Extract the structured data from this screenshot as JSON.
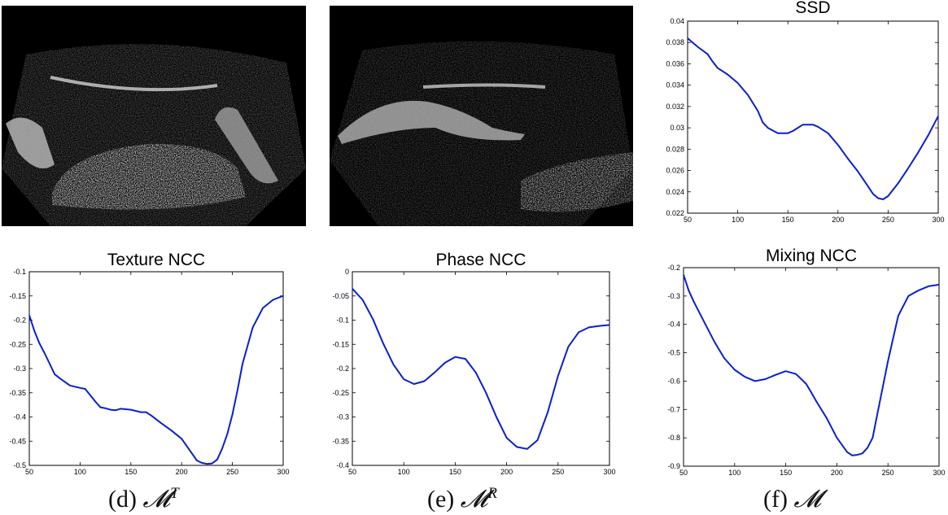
{
  "images": [
    {
      "name": "ultrasound-image-1"
    },
    {
      "name": "ultrasound-image-2"
    }
  ],
  "chart_data": [
    {
      "id": "ssd",
      "type": "line",
      "title": "SSD",
      "xlim": [
        50,
        300
      ],
      "ylim": [
        0.022,
        0.04
      ],
      "xticks": [
        50,
        100,
        150,
        200,
        250,
        300
      ],
      "yticks": [
        0.022,
        0.024,
        0.026,
        0.028,
        0.03,
        0.032,
        0.034,
        0.036,
        0.038,
        0.04
      ],
      "color": "#0a1fcf",
      "x": [
        50,
        60,
        70,
        75,
        80,
        90,
        100,
        110,
        120,
        125,
        130,
        140,
        150,
        155,
        160,
        165,
        170,
        175,
        180,
        190,
        200,
        210,
        220,
        230,
        235,
        240,
        245,
        250,
        260,
        270,
        280,
        290,
        300
      ],
      "y": [
        0.0384,
        0.0376,
        0.0369,
        0.0362,
        0.0356,
        0.035,
        0.0342,
        0.0331,
        0.0316,
        0.0305,
        0.03,
        0.0295,
        0.0295,
        0.0297,
        0.03,
        0.0303,
        0.0303,
        0.0303,
        0.0301,
        0.0295,
        0.0284,
        0.0271,
        0.0259,
        0.0245,
        0.0238,
        0.0234,
        0.0233,
        0.0236,
        0.0248,
        0.0262,
        0.0277,
        0.0293,
        0.0311
      ]
    },
    {
      "id": "texture-ncc",
      "type": "line",
      "title": "Texture NCC",
      "xlim": [
        50,
        300
      ],
      "ylim": [
        -0.5,
        -0.1
      ],
      "xticks": [
        50,
        100,
        150,
        200,
        250,
        300
      ],
      "yticks": [
        -0.5,
        -0.45,
        -0.4,
        -0.35,
        -0.3,
        -0.25,
        -0.2,
        -0.15,
        -0.1
      ],
      "color": "#0a1fcf",
      "x": [
        50,
        55,
        60,
        65,
        70,
        75,
        80,
        90,
        100,
        105,
        110,
        115,
        120,
        125,
        130,
        135,
        140,
        150,
        160,
        165,
        170,
        180,
        190,
        200,
        205,
        210,
        215,
        220,
        225,
        230,
        235,
        240,
        245,
        250,
        255,
        260,
        270,
        280,
        290,
        300
      ],
      "y": [
        -0.19,
        -0.222,
        -0.248,
        -0.268,
        -0.29,
        -0.312,
        -0.32,
        -0.335,
        -0.34,
        -0.342,
        -0.355,
        -0.368,
        -0.38,
        -0.382,
        -0.385,
        -0.386,
        -0.383,
        -0.385,
        -0.39,
        -0.39,
        -0.397,
        -0.413,
        -0.428,
        -0.445,
        -0.46,
        -0.475,
        -0.49,
        -0.495,
        -0.497,
        -0.496,
        -0.488,
        -0.465,
        -0.435,
        -0.395,
        -0.345,
        -0.29,
        -0.215,
        -0.175,
        -0.158,
        -0.15
      ]
    },
    {
      "id": "phase-ncc",
      "type": "line",
      "title": "Phase NCC",
      "xlim": [
        50,
        300
      ],
      "ylim": [
        -0.4,
        0
      ],
      "xticks": [
        50,
        100,
        150,
        200,
        250,
        300
      ],
      "yticks": [
        -0.4,
        -0.35,
        -0.3,
        -0.25,
        -0.2,
        -0.15,
        -0.1,
        -0.05,
        0
      ],
      "color": "#0a1fcf",
      "x": [
        50,
        60,
        70,
        80,
        90,
        100,
        110,
        120,
        130,
        140,
        150,
        160,
        170,
        180,
        190,
        200,
        210,
        220,
        230,
        240,
        250,
        260,
        270,
        280,
        290,
        300
      ],
      "y": [
        -0.035,
        -0.058,
        -0.098,
        -0.148,
        -0.192,
        -0.222,
        -0.232,
        -0.226,
        -0.208,
        -0.188,
        -0.176,
        -0.18,
        -0.208,
        -0.25,
        -0.3,
        -0.343,
        -0.362,
        -0.366,
        -0.348,
        -0.29,
        -0.215,
        -0.155,
        -0.125,
        -0.115,
        -0.112,
        -0.11
      ]
    },
    {
      "id": "mixing-ncc",
      "type": "line",
      "title": "Mixing NCC",
      "xlim": [
        50,
        300
      ],
      "ylim": [
        -0.9,
        -0.2
      ],
      "xticks": [
        50,
        100,
        150,
        200,
        250,
        300
      ],
      "yticks": [
        -0.9,
        -0.8,
        -0.7,
        -0.6,
        -0.5,
        -0.4,
        -0.3,
        -0.2
      ],
      "color": "#0a1fcf",
      "x": [
        50,
        55,
        60,
        70,
        80,
        90,
        100,
        110,
        120,
        130,
        140,
        150,
        160,
        170,
        175,
        180,
        190,
        200,
        210,
        215,
        220,
        225,
        230,
        235,
        240,
        250,
        260,
        270,
        280,
        290,
        300
      ],
      "y": [
        -0.225,
        -0.28,
        -0.32,
        -0.39,
        -0.46,
        -0.52,
        -0.56,
        -0.585,
        -0.6,
        -0.593,
        -0.578,
        -0.565,
        -0.575,
        -0.61,
        -0.64,
        -0.672,
        -0.73,
        -0.8,
        -0.85,
        -0.862,
        -0.86,
        -0.855,
        -0.835,
        -0.8,
        -0.71,
        -0.53,
        -0.37,
        -0.3,
        -0.28,
        -0.265,
        -0.26
      ]
    }
  ],
  "captions": {
    "d": {
      "label": "(d)",
      "symbol": "𝓜",
      "superscript": "T"
    },
    "e": {
      "label": "(e)",
      "symbol": "𝓜",
      "superscript": "R"
    },
    "f": {
      "label": "(f)",
      "symbol": "𝓜",
      "superscript": ""
    }
  }
}
